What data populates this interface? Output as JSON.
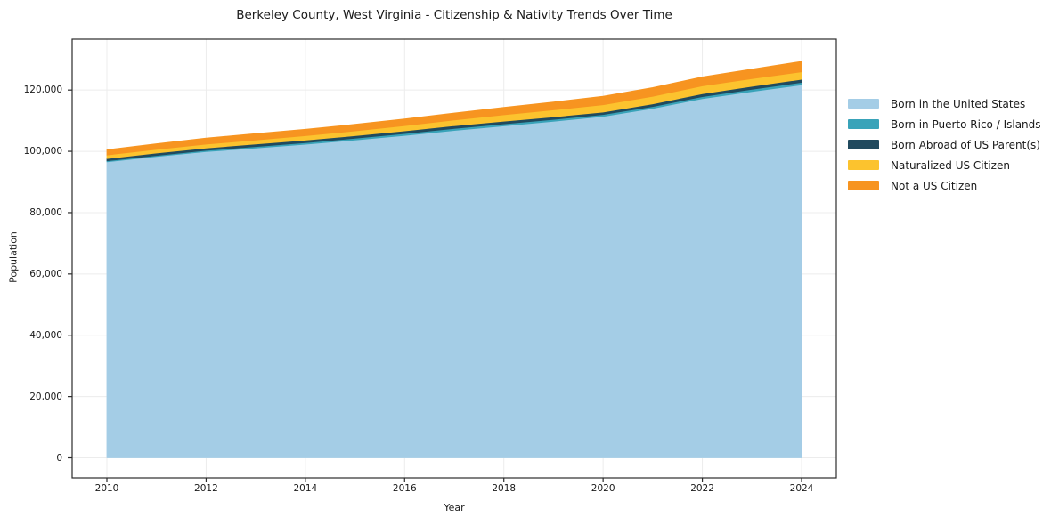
{
  "chart_data": {
    "type": "area",
    "stacked": true,
    "title": "Berkeley County, West Virginia - Citizenship & Nativity Trends Over Time",
    "xlabel": "Year",
    "ylabel": "Population",
    "x": [
      2010,
      2011,
      2012,
      2013,
      2014,
      2015,
      2016,
      2017,
      2018,
      2019,
      2020,
      2021,
      2022,
      2023,
      2024
    ],
    "series": [
      {
        "name": "Born in the United States",
        "color": "#a4cde6",
        "values": [
          96600,
          98300,
          99900,
          101100,
          102300,
          103700,
          105200,
          106800,
          108300,
          109800,
          111400,
          114000,
          117200,
          119500,
          121700
        ]
      },
      {
        "name": "Born in Puerto Rico / Islands",
        "color": "#39a3b9",
        "values": [
          300,
          350,
          400,
          450,
          500,
          550,
          600,
          650,
          650,
          620,
          600,
          620,
          650,
          720,
          800
        ]
      },
      {
        "name": "Born Abroad of US Parent(s)",
        "color": "#214a5e",
        "values": [
          750,
          780,
          800,
          820,
          840,
          860,
          880,
          900,
          870,
          840,
          800,
          880,
          950,
          980,
          1000
        ]
      },
      {
        "name": "Naturalized US Citizen",
        "color": "#fcc32e",
        "values": [
          1150,
          1200,
          1250,
          1350,
          1450,
          1550,
          1700,
          1900,
          2100,
          2250,
          2400,
          2450,
          2550,
          2500,
          2450
        ]
      },
      {
        "name": "Not a US Citizen",
        "color": "#f79420",
        "values": [
          1750,
          1850,
          2000,
          2050,
          2100,
          2150,
          2200,
          2250,
          2400,
          2600,
          2800,
          2850,
          2950,
          3150,
          3400
        ]
      }
    ],
    "x_ticks": [
      2010,
      2012,
      2014,
      2016,
      2018,
      2020,
      2022,
      2024
    ],
    "y_ticks": [
      0,
      20000,
      40000,
      60000,
      80000,
      100000,
      120000
    ],
    "xlim": [
      2009.3,
      2024.7
    ],
    "ylim": [
      -6530,
      136600
    ],
    "grid": true,
    "legend_position": "right-outside"
  },
  "style": {
    "background": "#ffffff",
    "grid_color": "#ececec",
    "axis_color": "#2b2b2b",
    "text_color": "#1a1a1a"
  }
}
